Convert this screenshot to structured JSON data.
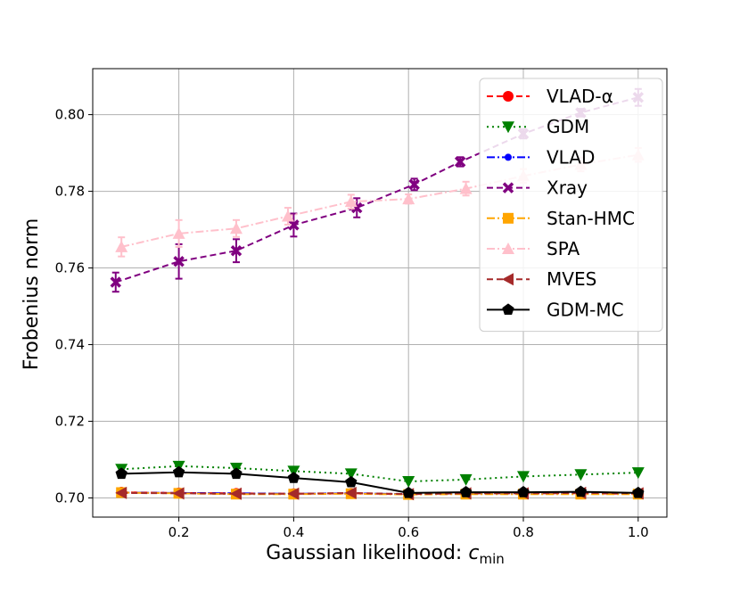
{
  "chart_data": {
    "type": "line",
    "title": "",
    "xlabel": "Gaussian likelihood: ",
    "xlabel_symbol": "c",
    "xlabel_subscript": "min",
    "ylabel": "Frobenius norm",
    "xlim": [
      0.05,
      1.05
    ],
    "ylim": [
      0.695,
      0.812
    ],
    "x_ticks": [
      0.2,
      0.4,
      0.6,
      0.8,
      1.0
    ],
    "x_tick_labels": [
      "0.2",
      "0.4",
      "0.6",
      "0.8",
      "1.0"
    ],
    "y_ticks": [
      0.7,
      0.72,
      0.74,
      0.76,
      0.78,
      0.8
    ],
    "y_tick_labels": [
      "0.70",
      "0.72",
      "0.74",
      "0.76",
      "0.78",
      "0.80"
    ],
    "grid": true,
    "legend_position": "top-right",
    "x": [
      0.1,
      0.2,
      0.3,
      0.4,
      0.5,
      0.6,
      0.7,
      0.8,
      0.9,
      1.0
    ],
    "series": [
      {
        "name": "VLAD-α",
        "color": "#ff0000",
        "dash": "dashed",
        "marker": "circle",
        "x": [
          0.1,
          0.2,
          0.3,
          0.4,
          0.5,
          0.6,
          0.7,
          0.8,
          0.9,
          1.0
        ],
        "values": [
          0.7015,
          0.7013,
          0.7012,
          0.7011,
          0.7012,
          0.701,
          0.7012,
          0.7012,
          0.7012,
          0.7011
        ],
        "errors": [
          0,
          0,
          0,
          0,
          0,
          0,
          0,
          0,
          0,
          0
        ]
      },
      {
        "name": "GDM",
        "color": "#008000",
        "dash": "dotted",
        "marker": "triangle-down",
        "x": [
          0.1,
          0.2,
          0.3,
          0.4,
          0.5,
          0.6,
          0.7,
          0.8,
          0.9,
          1.0
        ],
        "values": [
          0.7075,
          0.7083,
          0.7078,
          0.707,
          0.7063,
          0.7043,
          0.7048,
          0.7056,
          0.7061,
          0.7066
        ],
        "errors": [
          0,
          0,
          0,
          0,
          0,
          0,
          0,
          0,
          0,
          0
        ]
      },
      {
        "name": "VLAD",
        "color": "#0000ff",
        "dash": "dashdot",
        "marker": "circle-small",
        "x": [
          0.1,
          0.2,
          0.3,
          0.4,
          0.5,
          0.6,
          0.7,
          0.8,
          0.9,
          1.0
        ],
        "values": [
          0.7014,
          0.7013,
          0.7012,
          0.7011,
          0.7012,
          0.701,
          0.7011,
          0.7011,
          0.7012,
          0.7011
        ],
        "errors": [
          0,
          0,
          0,
          0,
          0,
          0,
          0,
          0,
          0,
          0
        ]
      },
      {
        "name": "Xray",
        "color": "#800080",
        "dash": "dashed",
        "marker": "x-filled",
        "x": [
          0.09,
          0.2,
          0.3,
          0.4,
          0.51,
          0.61,
          0.69,
          0.8,
          0.9,
          1.0
        ],
        "values": [
          0.7563,
          0.7617,
          0.7645,
          0.7712,
          0.7757,
          0.7818,
          0.7877,
          0.795,
          0.8005,
          0.8045
        ],
        "errors": [
          0.0025,
          0.0045,
          0.003,
          0.003,
          0.0025,
          0.0015,
          0.0012,
          0.0012,
          0.001,
          0.0022
        ]
      },
      {
        "name": "Stan-HMC",
        "color": "#ffa500",
        "dash": "dashdot",
        "marker": "square",
        "x": [
          0.1,
          0.2,
          0.3,
          0.4,
          0.5,
          0.6,
          0.7,
          0.8,
          0.9,
          1.0
        ],
        "values": [
          0.7014,
          0.7012,
          0.701,
          0.701,
          0.7011,
          0.7009,
          0.701,
          0.701,
          0.701,
          0.701
        ],
        "errors": [
          0,
          0,
          0,
          0,
          0,
          0,
          0,
          0,
          0,
          0
        ]
      },
      {
        "name": "SPA",
        "color": "#ffc0cb",
        "dash": "dashdot",
        "marker": "triangle-up",
        "x": [
          0.1,
          0.2,
          0.3,
          0.39,
          0.5,
          0.6,
          0.7,
          0.8,
          0.9,
          1.0
        ],
        "values": [
          0.7655,
          0.769,
          0.7703,
          0.7735,
          0.7773,
          0.778,
          0.7807,
          0.784,
          0.787,
          0.7895
        ],
        "errors": [
          0.0025,
          0.0035,
          0.0022,
          0.0022,
          0.0018,
          0.0012,
          0.0018,
          0.0018,
          0.0018,
          0.0018
        ]
      },
      {
        "name": "MVES",
        "color": "#a52a2a",
        "dash": "dashed",
        "marker": "triangle-left",
        "x": [
          0.1,
          0.2,
          0.3,
          0.4,
          0.5,
          0.6,
          0.7,
          0.8,
          0.9,
          1.0
        ],
        "values": [
          0.7013,
          0.7012,
          0.7011,
          0.7011,
          0.7013,
          0.701,
          0.7012,
          0.7012,
          0.7013,
          0.7012
        ],
        "errors": [
          0,
          0,
          0,
          0,
          0,
          0,
          0,
          0,
          0,
          0
        ]
      },
      {
        "name": "GDM-MC",
        "color": "#000000",
        "dash": "solid",
        "marker": "pentagon",
        "x": [
          0.1,
          0.2,
          0.3,
          0.4,
          0.5,
          0.6,
          0.7,
          0.8,
          0.9,
          1.0
        ],
        "values": [
          0.7063,
          0.7067,
          0.7063,
          0.7052,
          0.7041,
          0.7013,
          0.7015,
          0.7015,
          0.7016,
          0.7013
        ],
        "errors": [
          0,
          0,
          0,
          0,
          0,
          0,
          0,
          0,
          0,
          0
        ]
      }
    ]
  }
}
